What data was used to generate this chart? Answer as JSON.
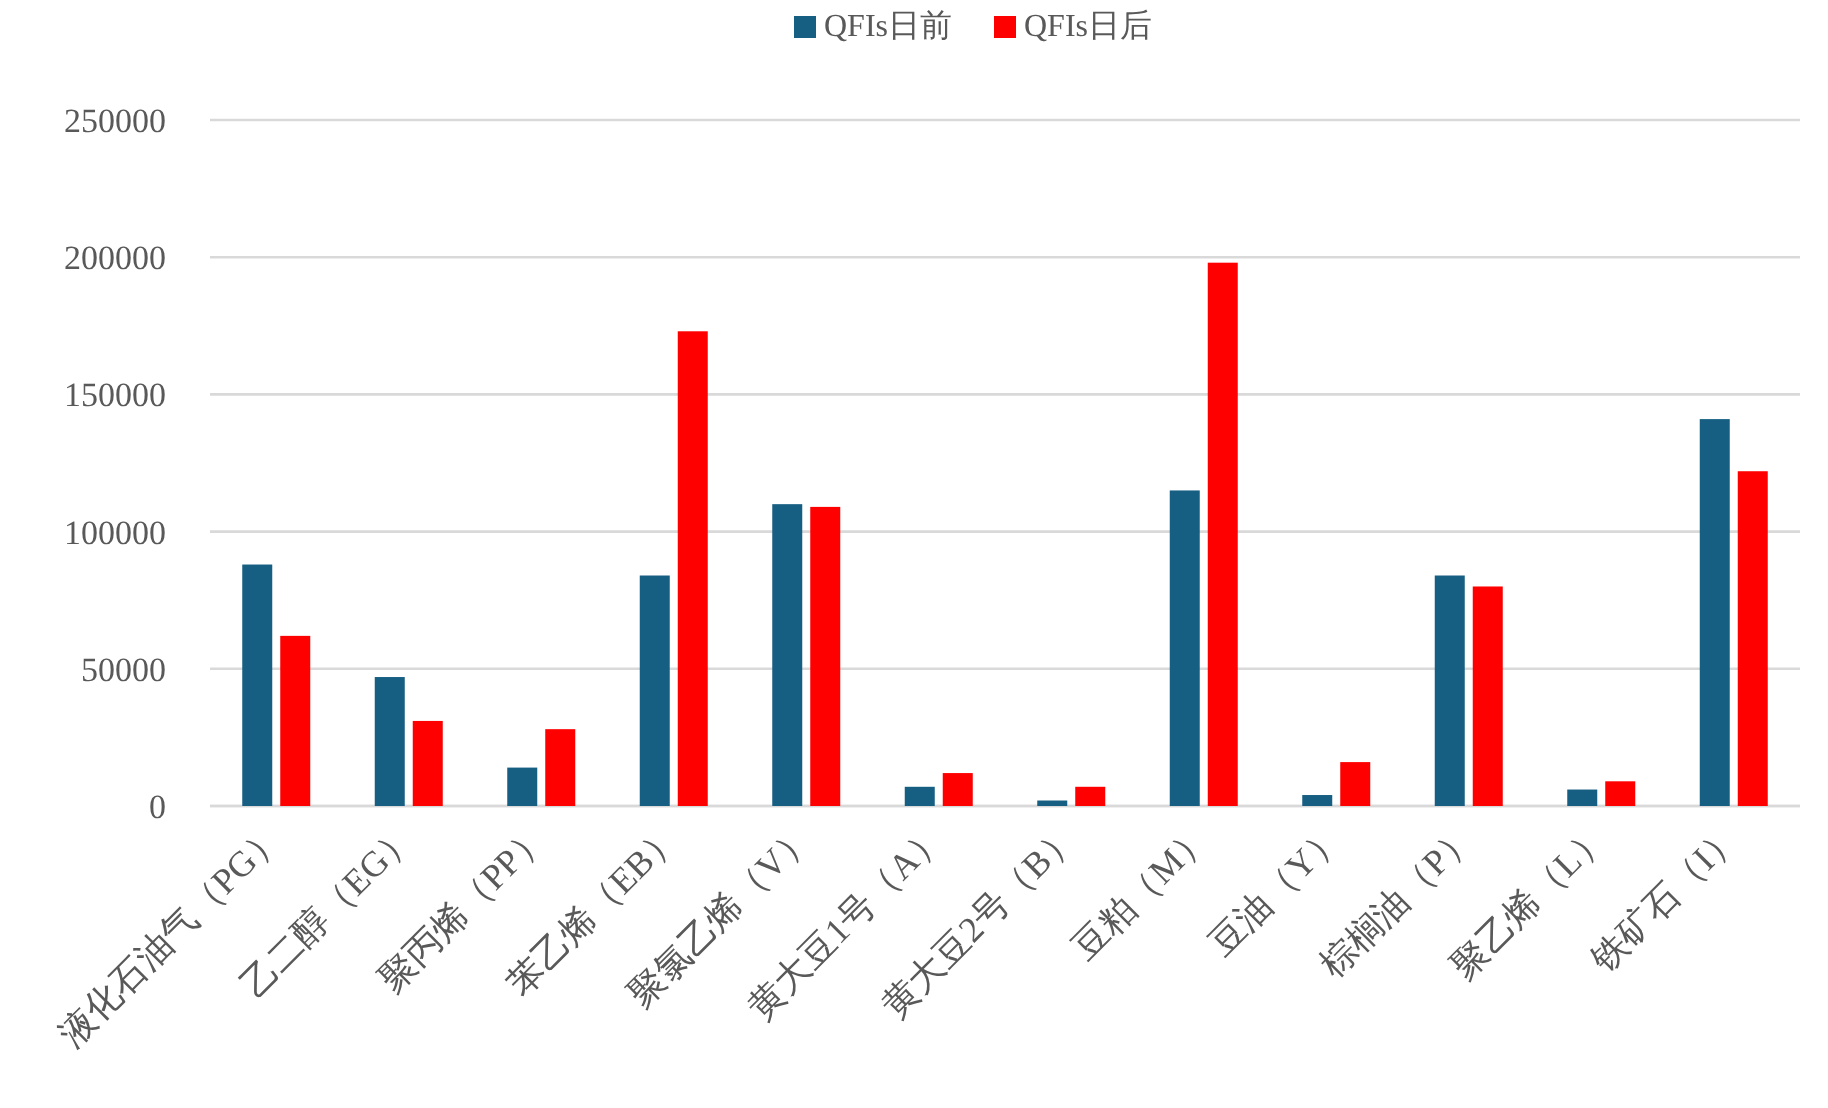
{
  "chart_data": {
    "type": "bar",
    "categories": [
      "液化石油气（PG）",
      "乙二醇（EG）",
      "聚丙烯（PP）",
      "苯乙烯（EB）",
      "聚氯乙烯（V）",
      "黄大豆1号（A）",
      "黄大豆2号（B）",
      "豆粕（M）",
      "豆油（Y）",
      "棕榈油（P）",
      "聚乙烯（L）",
      "铁矿石（I）"
    ],
    "series": [
      {
        "name": "QFIs日前",
        "color": "#175f82",
        "values": [
          88000,
          47000,
          14000,
          84000,
          110000,
          7000,
          2000,
          115000,
          4000,
          84000,
          6000,
          141000
        ]
      },
      {
        "name": "QFIs日后",
        "color": "#ff0000",
        "values": [
          62000,
          31000,
          28000,
          173000,
          109000,
          12000,
          7000,
          198000,
          16000,
          80000,
          9000,
          122000
        ]
      }
    ],
    "ylim": [
      0,
      250000
    ],
    "yticks": [
      0,
      50000,
      100000,
      150000,
      200000,
      250000
    ],
    "grid": "y",
    "legend": "top"
  }
}
